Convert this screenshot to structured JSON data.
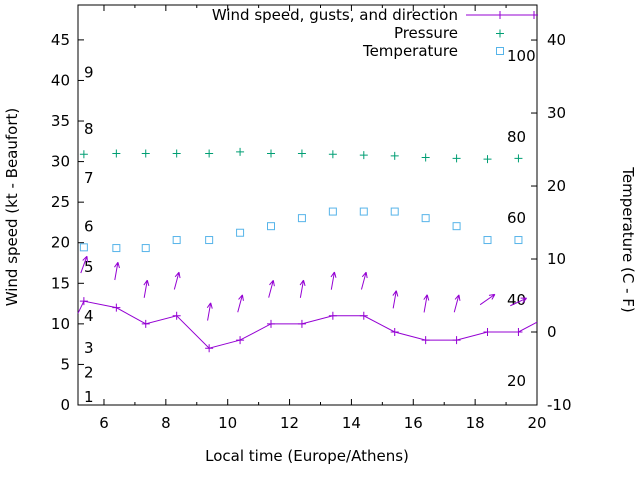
{
  "chart_data": {
    "type": "line",
    "title": "",
    "xlabel": "Local time (Europe/Athens)",
    "ylabel_left": "Wind speed (kt - Beaufort)",
    "ylabel_right": "Temperature (C - F)",
    "x_range": [
      5.16,
      20
    ],
    "yleft_range": [
      0,
      49.3
    ],
    "yright_range": [
      -10,
      44.8
    ],
    "x_ticks": [
      6,
      8,
      10,
      12,
      14,
      16,
      18,
      20
    ],
    "x_minor_step": 1,
    "yleft_ticks": [
      0,
      5,
      10,
      15,
      20,
      25,
      30,
      35,
      40,
      45
    ],
    "yright_ticks": [
      -10,
      0,
      10,
      20,
      30,
      40
    ],
    "beaufort_scale_labels": [
      {
        "label": "1",
        "kt": 1
      },
      {
        "label": "2",
        "kt": 4
      },
      {
        "label": "3",
        "kt": 7
      },
      {
        "label": "4",
        "kt": 11
      },
      {
        "label": "5",
        "kt": 17
      },
      {
        "label": "6",
        "kt": 22
      },
      {
        "label": "7",
        "kt": 28
      },
      {
        "label": "8",
        "kt": 34
      },
      {
        "label": "9",
        "kt": 41
      }
    ],
    "fahrenheit_scale_labels": [
      {
        "label": "20",
        "c": -6.7
      },
      {
        "label": "40",
        "c": 4.4
      },
      {
        "label": "60",
        "c": 15.6
      },
      {
        "label": "80",
        "c": 26.7
      },
      {
        "label": "100",
        "c": 37.8
      }
    ],
    "legend": [
      {
        "label": "Wind speed, gusts, and direction",
        "color": "#9400d3",
        "marker": "line-plus"
      },
      {
        "label": "Pressure",
        "color": "#009e73",
        "marker": "plus"
      },
      {
        "label": "Temperature",
        "color": "#56b4e9",
        "marker": "square"
      }
    ],
    "x": [
      5.35,
      6.4,
      7.35,
      8.35,
      9.4,
      10.4,
      11.4,
      12.4,
      13.4,
      14.4,
      15.4,
      16.4,
      17.4,
      18.4,
      19.4
    ],
    "series": [
      {
        "name": "wind_speed_kt",
        "axis": "left",
        "color": "#9400d3",
        "values": [
          12.8,
          12,
          10,
          11,
          7,
          8,
          10,
          10,
          11,
          11,
          9,
          8,
          8,
          9,
          9
        ],
        "edge_points": {
          "x": [
            5.16,
            20
          ],
          "y": [
            11.3,
            10.2
          ]
        }
      },
      {
        "name": "wind_gusts_kt",
        "axis": "left",
        "color": "#9400d3",
        "values": [
          17.3,
          16.5,
          14.3,
          15.3,
          11.5,
          12.5,
          14.3,
          14.3,
          15.3,
          15.3,
          13,
          12.5,
          12.5,
          13,
          12.7
        ],
        "arrow_angles_deg": [
          20,
          10,
          10,
          15,
          10,
          15,
          15,
          10,
          10,
          15,
          10,
          10,
          15,
          55,
          65
        ]
      },
      {
        "name": "pressure",
        "axis": "left",
        "color": "#009e73",
        "values": [
          30.9,
          31.0,
          31.0,
          31.0,
          31.0,
          31.2,
          31.0,
          31.0,
          30.9,
          30.8,
          30.7,
          30.5,
          30.4,
          30.3,
          30.4
        ]
      },
      {
        "name": "temperature_c",
        "axis": "right",
        "color": "#56b4e9",
        "values": [
          11.6,
          11.5,
          11.5,
          12.6,
          12.6,
          13.6,
          14.5,
          15.6,
          16.5,
          16.5,
          16.5,
          15.6,
          14.5,
          12.6,
          12.6
        ]
      }
    ]
  }
}
